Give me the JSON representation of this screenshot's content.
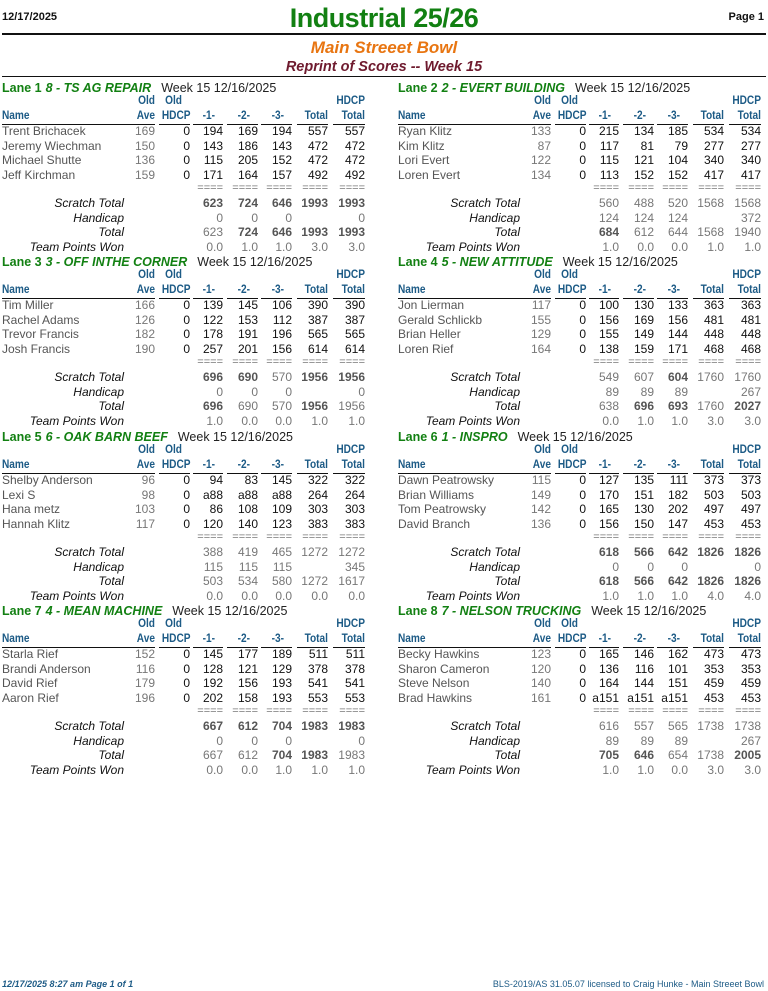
{
  "header": {
    "date": "12/17/2025",
    "title": "Industrial 25/26",
    "page": "Page 1",
    "center_name": "Main Streeet Bowl",
    "subtitle": "Reprint of Scores -- Week 15"
  },
  "columns": {
    "name": "Name",
    "old_top": "Old",
    "ave": "Ave",
    "hdcp": "HDCP",
    "g1": "-1-",
    "g2": "-2-",
    "g3": "-3-",
    "total": "Total",
    "hdcp_top": "HDCP",
    "hdcp_total": "Total",
    "separator": "===="
  },
  "summary_labels": {
    "scratch": "Scratch Total",
    "handicap": "Handicap",
    "total": "Total",
    "points": "Team Points Won"
  },
  "colors": {
    "title_green": "#128012",
    "center_orange": "#e87511",
    "subtitle_maroon": "#6e1a2e",
    "header_blue": "#1d5b86"
  },
  "lanes": [
    {
      "lane": "Lane 1",
      "team": "8 - TS AG REPAIR",
      "week": "Week 15  12/16/2025",
      "bowlers": [
        {
          "name": "Trent Brichacek",
          "ave": "169",
          "hdcp": "0",
          "g1": "194",
          "g2": "169",
          "g3": "194",
          "total": "557",
          "hdcp_total": "557"
        },
        {
          "name": "Jeremy Wiechman",
          "ave": "150",
          "hdcp": "0",
          "g1": "143",
          "g2": "186",
          "g3": "143",
          "total": "472",
          "hdcp_total": "472"
        },
        {
          "name": "Michael Shutte",
          "ave": "136",
          "hdcp": "0",
          "g1": "115",
          "g2": "205",
          "g3": "152",
          "total": "472",
          "hdcp_total": "472"
        },
        {
          "name": "Jeff Kirchman",
          "ave": "159",
          "hdcp": "0",
          "g1": "171",
          "g2": "164",
          "g3": "157",
          "total": "492",
          "hdcp_total": "492"
        }
      ],
      "scratch": {
        "g1": "623",
        "g2": "724",
        "g3": "646",
        "total": "1993",
        "hdcp_total": "1993",
        "bold": [
          1,
          1,
          1,
          1,
          1
        ]
      },
      "handicap": {
        "g1": "0",
        "g2": "0",
        "g3": "0",
        "total": "",
        "hdcp_total": "0"
      },
      "total": {
        "g1": "623",
        "g2": "724",
        "g3": "646",
        "total": "1993",
        "hdcp_total": "1993",
        "bold": [
          0,
          1,
          1,
          1,
          1
        ]
      },
      "points": {
        "g1": "0.0",
        "g2": "1.0",
        "g3": "1.0",
        "total": "3.0",
        "hdcp_total": "3.0"
      }
    },
    {
      "lane": "Lane 2",
      "team": "2 - EVERT BUILDING",
      "week": "Week 15  12/16/2025",
      "bowlers": [
        {
          "name": "Ryan Klitz",
          "ave": "133",
          "hdcp": "0",
          "g1": "215",
          "g2": "134",
          "g3": "185",
          "total": "534",
          "hdcp_total": "534"
        },
        {
          "name": "Kim Klitz",
          "ave": "87",
          "hdcp": "0",
          "g1": "117",
          "g2": "81",
          "g3": "79",
          "total": "277",
          "hdcp_total": "277"
        },
        {
          "name": "Lori Evert",
          "ave": "122",
          "hdcp": "0",
          "g1": "115",
          "g2": "121",
          "g3": "104",
          "total": "340",
          "hdcp_total": "340"
        },
        {
          "name": "Loren Evert",
          "ave": "134",
          "hdcp": "0",
          "g1": "113",
          "g2": "152",
          "g3": "152",
          "total": "417",
          "hdcp_total": "417"
        }
      ],
      "scratch": {
        "g1": "560",
        "g2": "488",
        "g3": "520",
        "total": "1568",
        "hdcp_total": "1568",
        "bold": [
          0,
          0,
          0,
          0,
          0
        ]
      },
      "handicap": {
        "g1": "124",
        "g2": "124",
        "g3": "124",
        "total": "",
        "hdcp_total": "372"
      },
      "total": {
        "g1": "684",
        "g2": "612",
        "g3": "644",
        "total": "1568",
        "hdcp_total": "1940",
        "bold": [
          1,
          0,
          0,
          0,
          0
        ]
      },
      "points": {
        "g1": "1.0",
        "g2": "0.0",
        "g3": "0.0",
        "total": "1.0",
        "hdcp_total": "1.0"
      }
    },
    {
      "lane": "Lane 3",
      "team": "3 - OFF INTHE CORNER",
      "week": "Week 15  12/16/2025",
      "bowlers": [
        {
          "name": "Tim Miller",
          "ave": "166",
          "hdcp": "0",
          "g1": "139",
          "g2": "145",
          "g3": "106",
          "total": "390",
          "hdcp_total": "390"
        },
        {
          "name": "Rachel Adams",
          "ave": "126",
          "hdcp": "0",
          "g1": "122",
          "g2": "153",
          "g3": "112",
          "total": "387",
          "hdcp_total": "387"
        },
        {
          "name": "Trevor Francis",
          "ave": "182",
          "hdcp": "0",
          "g1": "178",
          "g2": "191",
          "g3": "196",
          "total": "565",
          "hdcp_total": "565"
        },
        {
          "name": "Josh Francis",
          "ave": "190",
          "hdcp": "0",
          "g1": "257",
          "g2": "201",
          "g3": "156",
          "total": "614",
          "hdcp_total": "614"
        }
      ],
      "scratch": {
        "g1": "696",
        "g2": "690",
        "g3": "570",
        "total": "1956",
        "hdcp_total": "1956",
        "bold": [
          1,
          1,
          0,
          1,
          1
        ]
      },
      "handicap": {
        "g1": "0",
        "g2": "0",
        "g3": "0",
        "total": "",
        "hdcp_total": "0"
      },
      "total": {
        "g1": "696",
        "g2": "690",
        "g3": "570",
        "total": "1956",
        "hdcp_total": "1956",
        "bold": [
          1,
          0,
          0,
          1,
          0
        ]
      },
      "points": {
        "g1": "1.0",
        "g2": "0.0",
        "g3": "0.0",
        "total": "1.0",
        "hdcp_total": "1.0"
      }
    },
    {
      "lane": "Lane 4",
      "team": "5 - NEW ATTITUDE",
      "week": "Week 15  12/16/2025",
      "bowlers": [
        {
          "name": "Jon Lierman",
          "ave": "117",
          "hdcp": "0",
          "g1": "100",
          "g2": "130",
          "g3": "133",
          "total": "363",
          "hdcp_total": "363"
        },
        {
          "name": "Gerald Schlickb",
          "ave": "155",
          "hdcp": "0",
          "g1": "156",
          "g2": "169",
          "g3": "156",
          "total": "481",
          "hdcp_total": "481"
        },
        {
          "name": "Brian Heller",
          "ave": "129",
          "hdcp": "0",
          "g1": "155",
          "g2": "149",
          "g3": "144",
          "total": "448",
          "hdcp_total": "448"
        },
        {
          "name": "Loren Rief",
          "ave": "164",
          "hdcp": "0",
          "g1": "138",
          "g2": "159",
          "g3": "171",
          "total": "468",
          "hdcp_total": "468"
        }
      ],
      "scratch": {
        "g1": "549",
        "g2": "607",
        "g3": "604",
        "total": "1760",
        "hdcp_total": "1760",
        "bold": [
          0,
          0,
          1,
          0,
          0
        ]
      },
      "handicap": {
        "g1": "89",
        "g2": "89",
        "g3": "89",
        "total": "",
        "hdcp_total": "267"
      },
      "total": {
        "g1": "638",
        "g2": "696",
        "g3": "693",
        "total": "1760",
        "hdcp_total": "2027",
        "bold": [
          0,
          1,
          1,
          0,
          1
        ]
      },
      "points": {
        "g1": "0.0",
        "g2": "1.0",
        "g3": "1.0",
        "total": "3.0",
        "hdcp_total": "3.0"
      }
    },
    {
      "lane": "Lane 5",
      "team": "6 - OAK BARN BEEF",
      "week": "Week 15  12/16/2025",
      "bowlers": [
        {
          "name": "Shelby Anderson",
          "ave": "96",
          "hdcp": "0",
          "g1": "94",
          "g2": "83",
          "g3": "145",
          "total": "322",
          "hdcp_total": "322"
        },
        {
          "name": "Lexi S",
          "ave": "98",
          "hdcp": "0",
          "g1": "a88",
          "g2": "a88",
          "g3": "a88",
          "total": "264",
          "hdcp_total": "264"
        },
        {
          "name": "Hana metz",
          "ave": "103",
          "hdcp": "0",
          "g1": "86",
          "g2": "108",
          "g3": "109",
          "total": "303",
          "hdcp_total": "303"
        },
        {
          "name": "Hannah Klitz",
          "ave": "117",
          "hdcp": "0",
          "g1": "120",
          "g2": "140",
          "g3": "123",
          "total": "383",
          "hdcp_total": "383"
        }
      ],
      "scratch": {
        "g1": "388",
        "g2": "419",
        "g3": "465",
        "total": "1272",
        "hdcp_total": "1272",
        "bold": [
          0,
          0,
          0,
          0,
          0
        ]
      },
      "handicap": {
        "g1": "115",
        "g2": "115",
        "g3": "115",
        "total": "",
        "hdcp_total": "345"
      },
      "total": {
        "g1": "503",
        "g2": "534",
        "g3": "580",
        "total": "1272",
        "hdcp_total": "1617",
        "bold": [
          0,
          0,
          0,
          0,
          0
        ]
      },
      "points": {
        "g1": "0.0",
        "g2": "0.0",
        "g3": "0.0",
        "total": "0.0",
        "hdcp_total": "0.0"
      }
    },
    {
      "lane": "Lane 6",
      "team": "1 - INSPRO",
      "week": "Week 15  12/16/2025",
      "bowlers": [
        {
          "name": "Dawn Peatrowsky",
          "ave": "115",
          "hdcp": "0",
          "g1": "127",
          "g2": "135",
          "g3": "111",
          "total": "373",
          "hdcp_total": "373"
        },
        {
          "name": "Brian Williams",
          "ave": "149",
          "hdcp": "0",
          "g1": "170",
          "g2": "151",
          "g3": "182",
          "total": "503",
          "hdcp_total": "503"
        },
        {
          "name": "Tom Peatrowsky",
          "ave": "142",
          "hdcp": "0",
          "g1": "165",
          "g2": "130",
          "g3": "202",
          "total": "497",
          "hdcp_total": "497"
        },
        {
          "name": "David Branch",
          "ave": "136",
          "hdcp": "0",
          "g1": "156",
          "g2": "150",
          "g3": "147",
          "total": "453",
          "hdcp_total": "453"
        }
      ],
      "scratch": {
        "g1": "618",
        "g2": "566",
        "g3": "642",
        "total": "1826",
        "hdcp_total": "1826",
        "bold": [
          1,
          1,
          1,
          1,
          1
        ]
      },
      "handicap": {
        "g1": "0",
        "g2": "0",
        "g3": "0",
        "total": "",
        "hdcp_total": "0"
      },
      "total": {
        "g1": "618",
        "g2": "566",
        "g3": "642",
        "total": "1826",
        "hdcp_total": "1826",
        "bold": [
          1,
          1,
          1,
          1,
          1
        ]
      },
      "points": {
        "g1": "1.0",
        "g2": "1.0",
        "g3": "1.0",
        "total": "4.0",
        "hdcp_total": "4.0"
      }
    },
    {
      "lane": "Lane 7",
      "team": "4 - MEAN MACHINE",
      "week": "Week 15  12/16/2025",
      "bowlers": [
        {
          "name": "Starla Rief",
          "ave": "152",
          "hdcp": "0",
          "g1": "145",
          "g2": "177",
          "g3": "189",
          "total": "511",
          "hdcp_total": "511"
        },
        {
          "name": "Brandi Anderson",
          "ave": "116",
          "hdcp": "0",
          "g1": "128",
          "g2": "121",
          "g3": "129",
          "total": "378",
          "hdcp_total": "378"
        },
        {
          "name": "David Rief",
          "ave": "179",
          "hdcp": "0",
          "g1": "192",
          "g2": "156",
          "g3": "193",
          "total": "541",
          "hdcp_total": "541"
        },
        {
          "name": "Aaron Rief",
          "ave": "196",
          "hdcp": "0",
          "g1": "202",
          "g2": "158",
          "g3": "193",
          "total": "553",
          "hdcp_total": "553"
        }
      ],
      "scratch": {
        "g1": "667",
        "g2": "612",
        "g3": "704",
        "total": "1983",
        "hdcp_total": "1983",
        "bold": [
          1,
          1,
          1,
          1,
          1
        ]
      },
      "handicap": {
        "g1": "0",
        "g2": "0",
        "g3": "0",
        "total": "",
        "hdcp_total": "0"
      },
      "total": {
        "g1": "667",
        "g2": "612",
        "g3": "704",
        "total": "1983",
        "hdcp_total": "1983",
        "bold": [
          0,
          0,
          1,
          1,
          0
        ]
      },
      "points": {
        "g1": "0.0",
        "g2": "0.0",
        "g3": "1.0",
        "total": "1.0",
        "hdcp_total": "1.0"
      }
    },
    {
      "lane": "Lane 8",
      "team": "7 - NELSON TRUCKING",
      "week": "Week 15  12/16/2025",
      "bowlers": [
        {
          "name": "Becky Hawkins",
          "ave": "123",
          "hdcp": "0",
          "g1": "165",
          "g2": "146",
          "g3": "162",
          "total": "473",
          "hdcp_total": "473"
        },
        {
          "name": "Sharon Cameron",
          "ave": "120",
          "hdcp": "0",
          "g1": "136",
          "g2": "116",
          "g3": "101",
          "total": "353",
          "hdcp_total": "353"
        },
        {
          "name": "Steve Nelson",
          "ave": "140",
          "hdcp": "0",
          "g1": "164",
          "g2": "144",
          "g3": "151",
          "total": "459",
          "hdcp_total": "459"
        },
        {
          "name": "Brad Hawkins",
          "ave": "161",
          "hdcp": "0",
          "g1": "a151",
          "g2": "a151",
          "g3": "a151",
          "total": "453",
          "hdcp_total": "453"
        }
      ],
      "scratch": {
        "g1": "616",
        "g2": "557",
        "g3": "565",
        "total": "1738",
        "hdcp_total": "1738",
        "bold": [
          0,
          0,
          0,
          0,
          0
        ]
      },
      "handicap": {
        "g1": "89",
        "g2": "89",
        "g3": "89",
        "total": "",
        "hdcp_total": "267"
      },
      "total": {
        "g1": "705",
        "g2": "646",
        "g3": "654",
        "total": "1738",
        "hdcp_total": "2005",
        "bold": [
          1,
          1,
          0,
          0,
          1
        ]
      },
      "points": {
        "g1": "1.0",
        "g2": "1.0",
        "g3": "0.0",
        "total": "3.0",
        "hdcp_total": "3.0"
      }
    }
  ],
  "footer": {
    "left": "12/17/2025  8:27 am  Page 1 of 1",
    "right": "BLS-2019/AS 31.05.07 licensed to Craig Hunke - Main Streeet Bowl"
  }
}
